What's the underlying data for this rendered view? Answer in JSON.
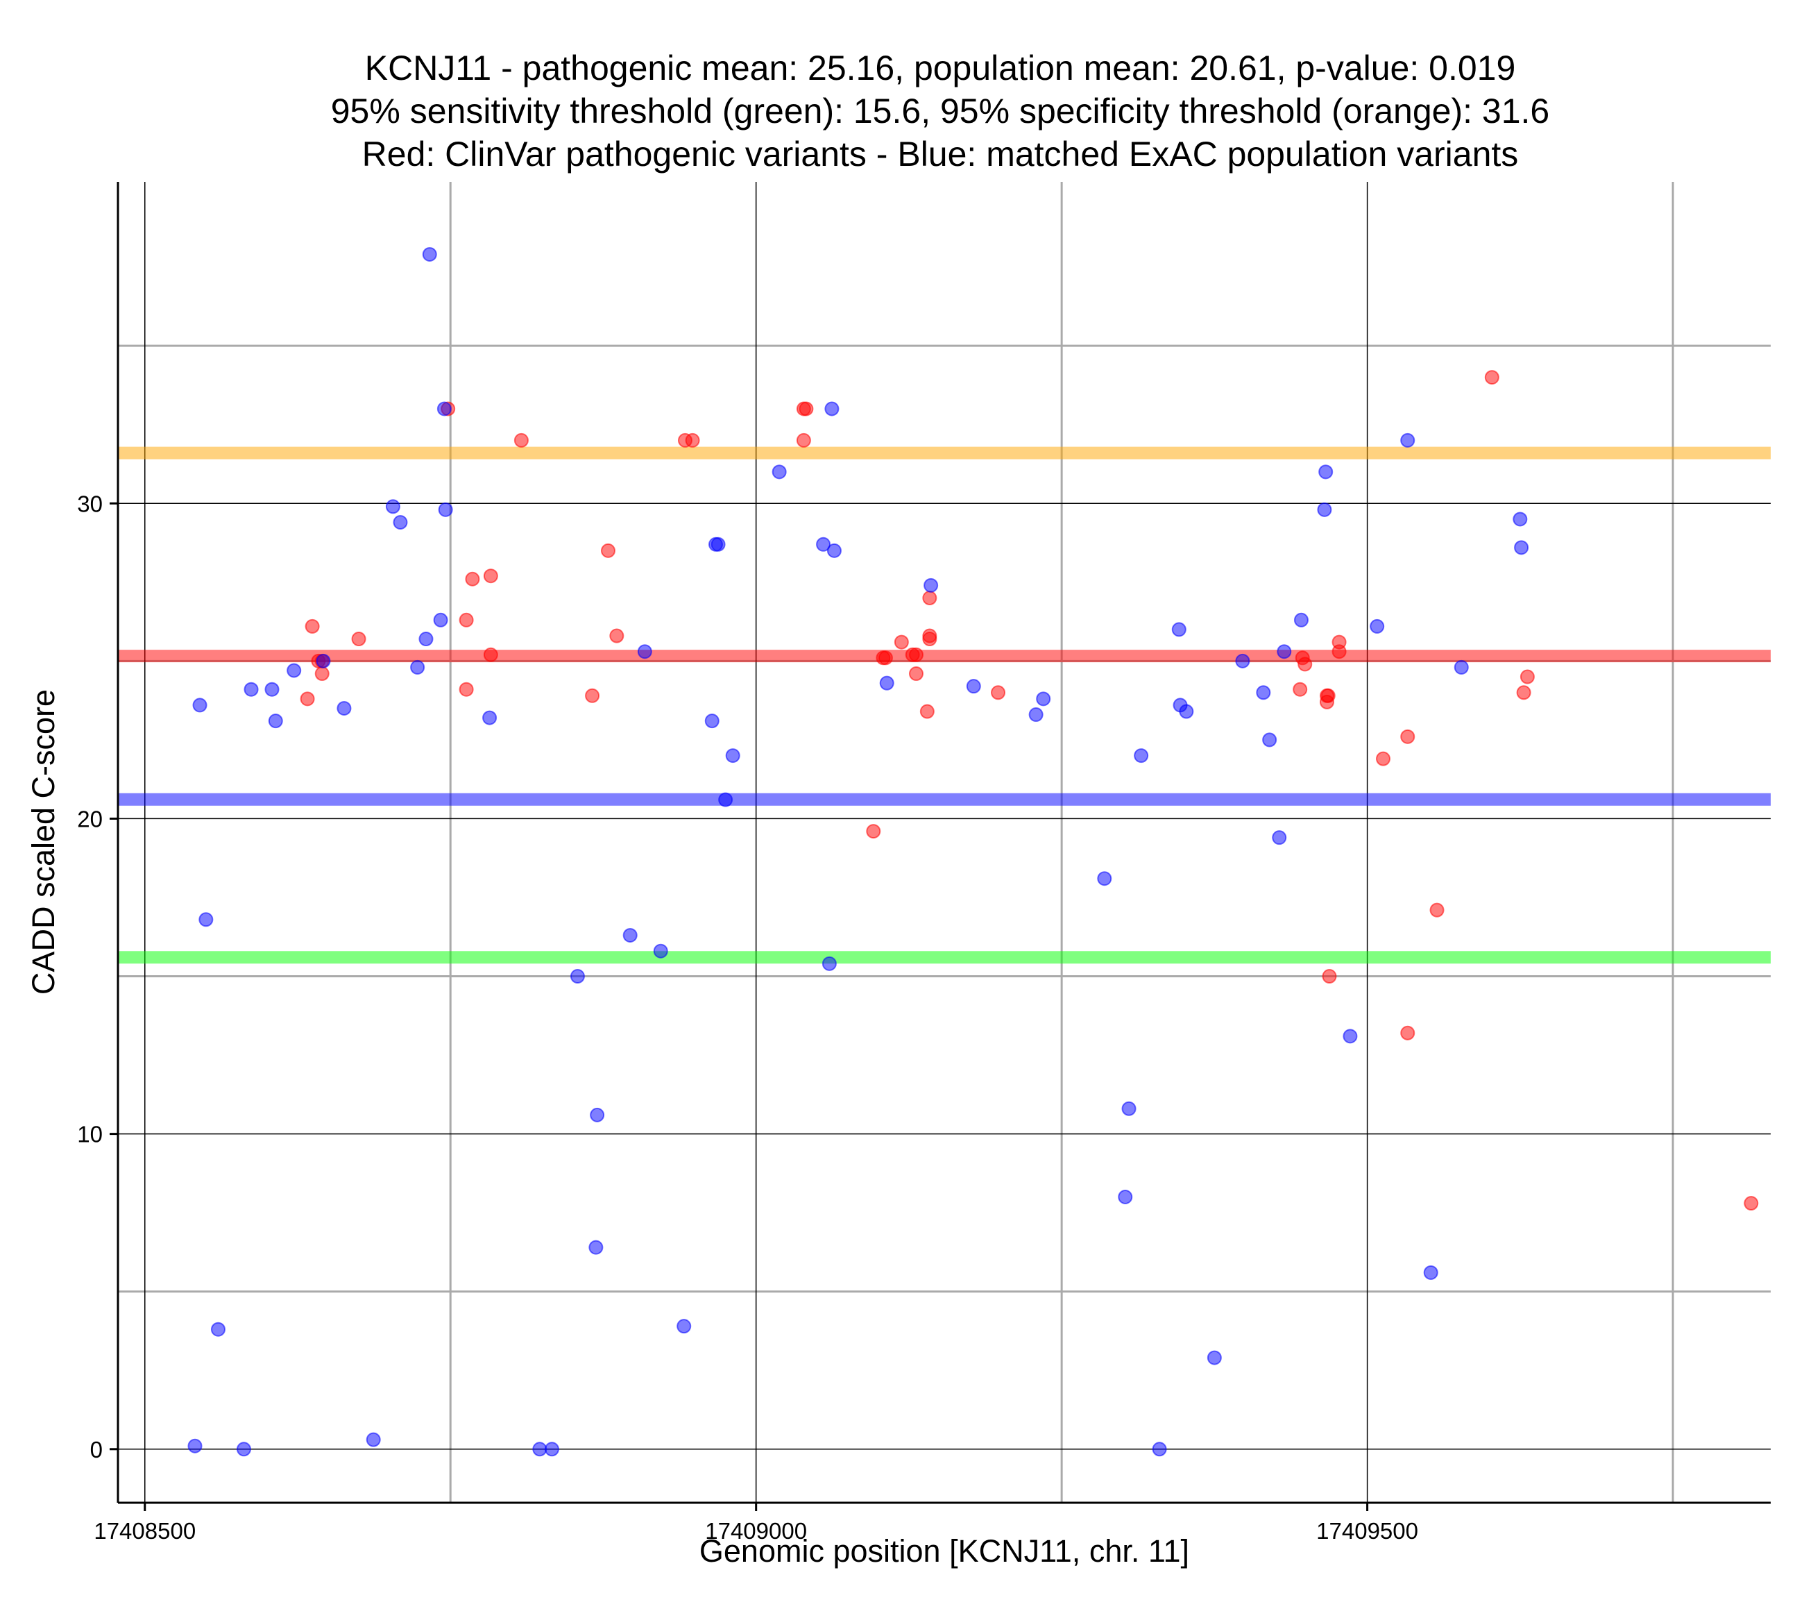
{
  "chart_data": {
    "type": "scatter",
    "title_lines": [
      "KCNJ11 - pathogenic mean: 25.16, population mean: 20.61, p-value: 0.019",
      "95% sensitivity threshold (green): 15.6, 95% specificity threshold (orange): 31.6",
      "Red: ClinVar pathogenic variants - Blue: matched ExAC population variants"
    ],
    "xlabel": "Genomic position [KCNJ11, chr. 11]",
    "ylabel": "CADD scaled C-score",
    "xlim": [
      17408478,
      17409830
    ],
    "ylim": [
      -1.7,
      40.2
    ],
    "x_ticks": [
      {
        "value": 17408500,
        "label": "17408500"
      },
      {
        "value": 17409000,
        "label": "17409000"
      },
      {
        "value": 17409500,
        "label": "17409500"
      }
    ],
    "y_ticks": [
      {
        "value": 0,
        "label": "0"
      },
      {
        "value": 10,
        "label": "10"
      },
      {
        "value": 20,
        "label": "20"
      },
      {
        "value": 30,
        "label": "30"
      }
    ],
    "x_minor_gridlines": [
      17408750,
      17409250,
      17409750
    ],
    "y_minor_gridlines": [
      5,
      15,
      25,
      35
    ],
    "grid": true,
    "horizontal_lines": [
      {
        "name": "specificity-threshold",
        "y": 31.6,
        "color": "#ffa500"
      },
      {
        "name": "pathogenic-mean",
        "y": 25.16,
        "color": "#ff0000"
      },
      {
        "name": "population-mean",
        "y": 20.61,
        "color": "#0000ff"
      },
      {
        "name": "sensitivity-threshold",
        "y": 15.6,
        "color": "#00ff00"
      }
    ],
    "series": [
      {
        "group": "pathogenic",
        "color": "#ff0000",
        "points": [
          [
            17408637,
            26.1
          ],
          [
            17408633,
            23.8
          ],
          [
            17408642,
            25.0
          ],
          [
            17408645,
            24.6
          ],
          [
            17408645,
            25.0
          ],
          [
            17408675,
            25.7
          ],
          [
            17408748,
            33.0
          ],
          [
            17408763,
            26.3
          ],
          [
            17408763,
            24.1
          ],
          [
            17408768,
            27.6
          ],
          [
            17408783,
            27.7
          ],
          [
            17408783,
            25.2
          ],
          [
            17408808,
            32.0
          ],
          [
            17408866,
            23.9
          ],
          [
            17408879,
            28.5
          ],
          [
            17408886,
            25.8
          ],
          [
            17408942,
            32.0
          ],
          [
            17408948,
            32.0
          ],
          [
            17409039,
            33.0
          ],
          [
            17409041,
            33.0
          ],
          [
            17409039,
            32.0
          ],
          [
            17409096,
            19.6
          ],
          [
            17409104,
            25.1
          ],
          [
            17409106,
            25.1
          ],
          [
            17409119,
            25.6
          ],
          [
            17409128,
            25.2
          ],
          [
            17409131,
            24.6
          ],
          [
            17409131,
            25.2
          ],
          [
            17409140,
            23.4
          ],
          [
            17409142,
            25.7
          ],
          [
            17409142,
            25.8
          ],
          [
            17409142,
            27.0
          ],
          [
            17409198,
            24.0
          ],
          [
            17409445,
            24.1
          ],
          [
            17409447,
            25.1
          ],
          [
            17409449,
            24.9
          ],
          [
            17409467,
            23.7
          ],
          [
            17409468,
            23.9
          ],
          [
            17409467,
            23.9
          ],
          [
            17409477,
            25.3
          ],
          [
            17409477,
            25.6
          ],
          [
            17409469,
            15.0
          ],
          [
            17409513,
            21.9
          ],
          [
            17409533,
            22.6
          ],
          [
            17409533,
            13.2
          ],
          [
            17409557,
            17.1
          ],
          [
            17409602,
            34.0
          ],
          [
            17409628,
            24.0
          ],
          [
            17409631,
            24.5
          ],
          [
            17409814,
            7.8
          ]
        ]
      },
      {
        "group": "population",
        "color": "#0000ff",
        "points": [
          [
            17408541,
            0.1
          ],
          [
            17408545,
            23.6
          ],
          [
            17408550,
            16.8
          ],
          [
            17408560,
            3.8
          ],
          [
            17408581,
            0.0
          ],
          [
            17408587,
            24.1
          ],
          [
            17408604,
            24.1
          ],
          [
            17408607,
            23.1
          ],
          [
            17408622,
            24.7
          ],
          [
            17408646,
            25.0
          ],
          [
            17408663,
            23.5
          ],
          [
            17408687,
            0.3
          ],
          [
            17408703,
            29.9
          ],
          [
            17408709,
            29.4
          ],
          [
            17408723,
            24.8
          ],
          [
            17408730,
            25.7
          ],
          [
            17408733,
            37.9
          ],
          [
            17408742,
            26.3
          ],
          [
            17408745,
            33.0
          ],
          [
            17408746,
            29.8
          ],
          [
            17408782,
            23.2
          ],
          [
            17408823,
            0.0
          ],
          [
            17408833,
            0.0
          ],
          [
            17408854,
            15.0
          ],
          [
            17408869,
            6.4
          ],
          [
            17408870,
            10.6
          ],
          [
            17408897,
            16.3
          ],
          [
            17408909,
            25.3
          ],
          [
            17408922,
            15.8
          ],
          [
            17408941,
            3.9
          ],
          [
            17408964,
            23.1
          ],
          [
            17408967,
            28.7
          ],
          [
            17408969,
            28.7
          ],
          [
            17408975,
            20.6
          ],
          [
            17408981,
            22.0
          ],
          [
            17409019,
            31.0
          ],
          [
            17409055,
            28.7
          ],
          [
            17409060,
            15.4
          ],
          [
            17409062,
            33.0
          ],
          [
            17409064,
            28.5
          ],
          [
            17409107,
            24.3
          ],
          [
            17409143,
            27.4
          ],
          [
            17409178,
            24.2
          ],
          [
            17409229,
            23.3
          ],
          [
            17409235,
            23.8
          ],
          [
            17409285,
            18.1
          ],
          [
            17409302,
            8.0
          ],
          [
            17409305,
            10.8
          ],
          [
            17409315,
            22.0
          ],
          [
            17409330,
            0.0
          ],
          [
            17409346,
            26.0
          ],
          [
            17409347,
            23.6
          ],
          [
            17409352,
            23.4
          ],
          [
            17409375,
            2.9
          ],
          [
            17409398,
            25.0
          ],
          [
            17409415,
            24.0
          ],
          [
            17409420,
            22.5
          ],
          [
            17409428,
            19.4
          ],
          [
            17409432,
            25.3
          ],
          [
            17409446,
            26.3
          ],
          [
            17409465,
            29.8
          ],
          [
            17409466,
            31.0
          ],
          [
            17409486,
            13.1
          ],
          [
            17409508,
            26.1
          ],
          [
            17409533,
            32.0
          ],
          [
            17409552,
            5.6
          ],
          [
            17409577,
            24.8
          ],
          [
            17409625,
            29.5
          ],
          [
            17409626,
            28.6
          ]
        ]
      }
    ]
  }
}
